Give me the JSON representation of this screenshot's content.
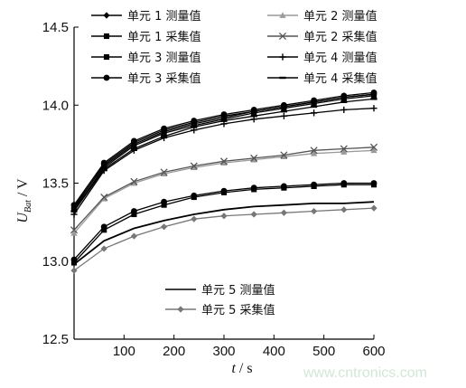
{
  "chart_data": {
    "type": "line",
    "xlabel": "t / s",
    "ylabel": "U_Bat / V",
    "xlim": [
      0,
      600
    ],
    "ylim": [
      12.5,
      14.5
    ],
    "x_ticks": [
      100,
      200,
      300,
      400,
      500,
      600
    ],
    "y_ticks": [
      12.5,
      13.0,
      13.5,
      14.0,
      14.5
    ],
    "x_tick_labels": [
      "100",
      "200",
      "300",
      "400",
      "500",
      "600"
    ],
    "y_tick_labels": [
      "12.5",
      "13.0",
      "13.5",
      "14.0",
      "14.5"
    ],
    "x": [
      0,
      60,
      120,
      180,
      240,
      300,
      360,
      420,
      480,
      540,
      600
    ],
    "series": [
      {
        "name": "单元 1 测量值",
        "color": "#000000",
        "marker": "diamond",
        "values": [
          13.34,
          13.62,
          13.76,
          13.84,
          13.89,
          13.93,
          13.96,
          13.99,
          14.02,
          14.05,
          14.07
        ]
      },
      {
        "name": "单元 1 采集值",
        "color": "#000000",
        "marker": "square",
        "values": [
          13.33,
          13.6,
          13.74,
          13.82,
          13.87,
          13.91,
          13.95,
          13.98,
          14.01,
          14.04,
          14.06
        ]
      },
      {
        "name": "单元 3 测量值",
        "color": "#000000",
        "marker": "square",
        "values": [
          13.35,
          13.61,
          13.75,
          13.83,
          13.88,
          13.92,
          13.96,
          13.99,
          14.02,
          14.05,
          14.07
        ]
      },
      {
        "name": "单元 3 采集值",
        "color": "#000000",
        "marker": "circle",
        "values": [
          13.36,
          13.63,
          13.77,
          13.85,
          13.9,
          13.94,
          13.97,
          14.0,
          14.03,
          14.06,
          14.08
        ]
      },
      {
        "name": "单元 2 测量值",
        "color": "#9a9a9a",
        "marker": "triangle",
        "values": [
          13.18,
          13.4,
          13.5,
          13.56,
          13.6,
          13.63,
          13.65,
          13.67,
          13.69,
          13.7,
          13.71
        ]
      },
      {
        "name": "单元 2 采集值",
        "color": "#555555",
        "marker": "x",
        "values": [
          13.2,
          13.41,
          13.51,
          13.57,
          13.61,
          13.64,
          13.66,
          13.68,
          13.71,
          13.72,
          13.73
        ]
      },
      {
        "name": "单元 4 测量值",
        "color": "#000000",
        "marker": "plus",
        "values": [
          13.3,
          13.58,
          13.71,
          13.79,
          13.84,
          13.88,
          13.91,
          13.93,
          13.95,
          13.97,
          13.98
        ]
      },
      {
        "name": "单元 4 采集值",
        "color": "#000000",
        "marker": "dash",
        "values": [
          13.32,
          13.59,
          13.72,
          13.8,
          13.86,
          13.9,
          13.93,
          13.96,
          13.99,
          14.02,
          14.04
        ]
      },
      {
        "name": "单元 5 测量值",
        "color": "#000000",
        "marker": "none",
        "values": [
          12.98,
          13.13,
          13.21,
          13.26,
          13.3,
          13.33,
          13.35,
          13.36,
          13.37,
          13.37,
          13.38
        ]
      },
      {
        "name": "单元 5 采集值",
        "color": "#777777",
        "marker": "diamond",
        "values": [
          12.94,
          13.08,
          13.16,
          13.22,
          13.27,
          13.29,
          13.3,
          13.31,
          13.32,
          13.33,
          13.34
        ]
      }
    ],
    "extra_unlabeled_series": [
      {
        "color": "#000000",
        "marker": "circle",
        "values": [
          13.01,
          13.22,
          13.32,
          13.38,
          13.42,
          13.45,
          13.47,
          13.48,
          13.49,
          13.5,
          13.5
        ]
      },
      {
        "color": "#000000",
        "marker": "square",
        "values": [
          12.99,
          13.2,
          13.3,
          13.36,
          13.41,
          13.44,
          13.46,
          13.47,
          13.48,
          13.49,
          13.49
        ]
      }
    ],
    "legend_top": [
      "单元 1 测量值",
      "单元 2 测量值",
      "单元 1 采集值",
      "单元 2 采集值",
      "单元 3 测量值",
      "单元 4 测量值",
      "单元 3 采集值",
      "单元 4 采集值"
    ],
    "legend_bottom": [
      "单元 5 测量值",
      "单元 5 采集值"
    ]
  },
  "labels": {
    "ylabel_main": "U",
    "ylabel_sub": "Bat",
    "ylabel_unit": " / V",
    "xlabel_main": "t",
    "xlabel_unit": " / s",
    "watermark": "www.cntronics.com"
  }
}
